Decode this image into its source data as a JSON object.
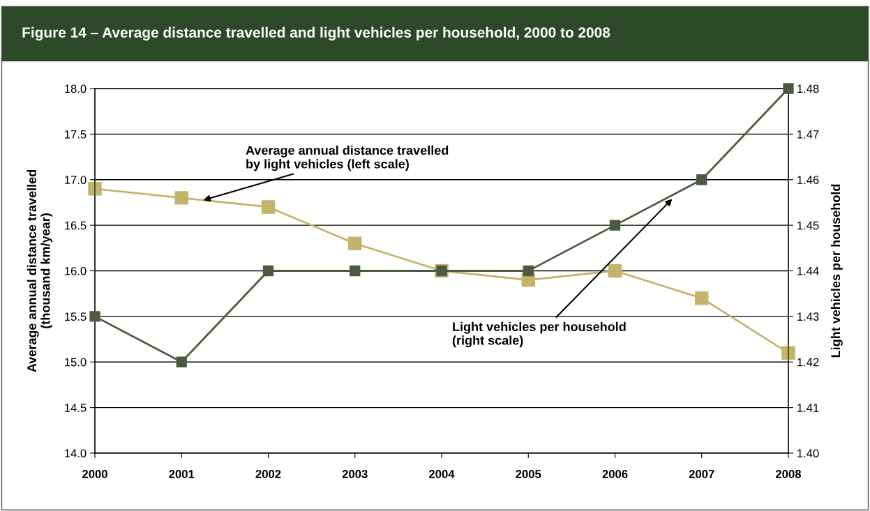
{
  "chart_data": {
    "type": "line",
    "title": "Figure 14 – Average distance travelled and light vehicles per household, 2000 to 2008",
    "ylabel": "Average annual distance travelled\n(thousand km/year)",
    "y2label": "Light vehicles per household",
    "x": [
      2000,
      2001,
      2002,
      2003,
      2004,
      2005,
      2006,
      2007,
      2008
    ],
    "xlim": [
      2000,
      2008
    ],
    "xticks": [
      2000,
      2001,
      2002,
      2003,
      2004,
      2005,
      2006,
      2007,
      2008
    ],
    "series": [
      {
        "color": "#c3b46b",
        "values": [
          16.9,
          16.8,
          16.7,
          16.3,
          16.0,
          15.9,
          16.0,
          15.7,
          15.1
        ]
      },
      {
        "color": "#4b5a40",
        "axis": "y2",
        "values": [
          1.43,
          1.42,
          1.44,
          1.44,
          1.44,
          1.44,
          1.45,
          1.46,
          1.48
        ]
      }
    ],
    "ylim": [
      14.0,
      18.0
    ],
    "yticks": [
      {
        "value": 14,
        "label": "14.0"
      },
      14.5,
      {
        "value": 15,
        "label": "15.0"
      },
      15.5,
      {
        "value": 16,
        "label": "16.0"
      },
      16.5,
      {
        "value": 17,
        "label": "17.0"
      },
      17.5,
      {
        "value": 18,
        "label": "18.0"
      }
    ],
    "y2lim": [
      1.4,
      1.48
    ],
    "y2ticks": [
      {
        "value": 1.4,
        "label": "1.40"
      },
      1.41,
      1.42,
      1.43,
      1.44,
      1.45,
      1.46,
      1.47,
      1.48
    ],
    "grid": "y",
    "marker": "square",
    "line_style": "solid",
    "legend": false,
    "annotations": [
      {
        "text": "Average annual distance travelled\nby light vehicles (left scale)",
        "x": 2001.25,
        "y": 16.775
      },
      {
        "text": "Light vehicles per household\n(right scale)",
        "x": 2006.66,
        "y": 16.79
      }
    ]
  }
}
